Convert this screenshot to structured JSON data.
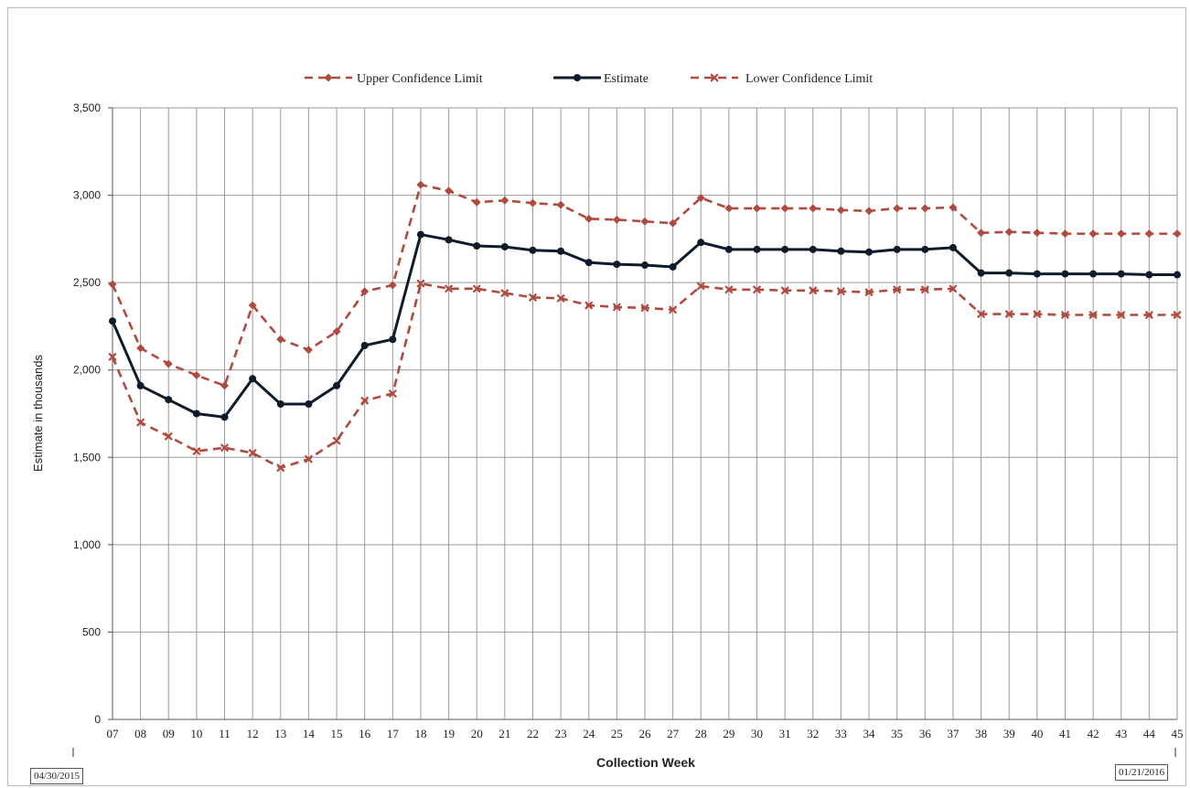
{
  "chart_data": {
    "type": "line",
    "title": "",
    "xlabel": "Collection Week",
    "ylabel": "Estimate in thousands",
    "ylim": [
      0,
      3500
    ],
    "yticks": [
      0,
      500,
      1000,
      1500,
      2000,
      2500,
      3000,
      3500
    ],
    "ytick_labels": [
      "0",
      "500",
      "1,000",
      "1,500",
      "2,000",
      "2,500",
      "3,000",
      "3,500"
    ],
    "grid": true,
    "legend_position": "top",
    "categories": [
      "07",
      "08",
      "09",
      "10",
      "11",
      "12",
      "13",
      "14",
      "15",
      "16",
      "17",
      "18",
      "19",
      "20",
      "21",
      "22",
      "23",
      "24",
      "25",
      "26",
      "27",
      "28",
      "29",
      "30",
      "31",
      "32",
      "33",
      "34",
      "35",
      "36",
      "37",
      "38",
      "39",
      "40",
      "41",
      "42",
      "43",
      "44",
      "45"
    ],
    "series": [
      {
        "name": "Upper Confidence Limit",
        "color": "#b04a3f",
        "style": "dashed",
        "marker": "diamond",
        "values": [
          2490,
          2125,
          2035,
          1970,
          1910,
          2370,
          2175,
          2115,
          2220,
          2450,
          2485,
          3060,
          3025,
          2960,
          2970,
          2955,
          2945,
          2865,
          2860,
          2850,
          2840,
          2985,
          2925,
          2925,
          2925,
          2925,
          2915,
          2910,
          2925,
          2925,
          2930,
          2785,
          2790,
          2785,
          2780,
          2780,
          2780,
          2780,
          2780
        ]
      },
      {
        "name": "Estimate",
        "color": "#0d1b2a",
        "style": "solid",
        "marker": "circle",
        "values": [
          2280,
          1910,
          1830,
          1750,
          1730,
          1950,
          1805,
          1805,
          1910,
          2140,
          2175,
          2775,
          2745,
          2710,
          2705,
          2685,
          2680,
          2615,
          2605,
          2600,
          2590,
          2730,
          2690,
          2690,
          2690,
          2690,
          2680,
          2675,
          2690,
          2690,
          2700,
          2555,
          2555,
          2550,
          2550,
          2550,
          2550,
          2545,
          2545
        ]
      },
      {
        "name": "Lower Confidence Limit",
        "color": "#b04a3f",
        "style": "dashed",
        "marker": "x",
        "values": [
          2075,
          1700,
          1620,
          1535,
          1555,
          1525,
          1440,
          1490,
          1595,
          1825,
          1865,
          2495,
          2465,
          2465,
          2440,
          2415,
          2410,
          2370,
          2360,
          2355,
          2345,
          2480,
          2460,
          2460,
          2455,
          2455,
          2450,
          2445,
          2460,
          2460,
          2465,
          2320,
          2320,
          2320,
          2315,
          2315,
          2315,
          2315,
          2315
        ]
      }
    ],
    "annotations": {
      "start_date": "04/30/2015",
      "end_date": "01/21/2016"
    }
  }
}
